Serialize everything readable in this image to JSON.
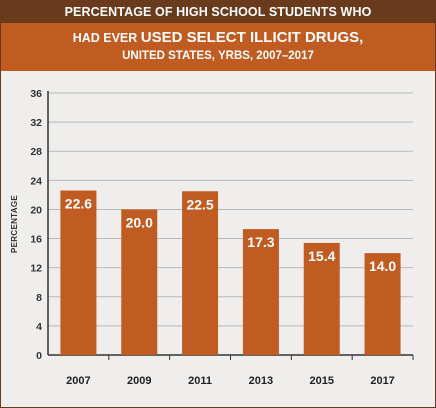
{
  "header": {
    "top_text": "PERCENTAGE OF HIGH SCHOOL STUDENTS WHO",
    "title_prefix": "HAD EVER ",
    "title_emphasis": "USED SELECT ILLICIT DRUGS,",
    "subtitle": "UNITED STATES, YRBS, 2007–2017"
  },
  "colors": {
    "top_band": "#6a3a1c",
    "title_band": "#c05b22",
    "bar": "#c05b22",
    "plot_background": "#efeeed",
    "gridline": "#b9b9b9"
  },
  "chart_data": {
    "type": "bar",
    "categories": [
      "2007",
      "2009",
      "2011",
      "2013",
      "2015",
      "2017"
    ],
    "values": [
      22.6,
      20.0,
      22.5,
      17.3,
      15.4,
      14.0
    ],
    "data_labels": [
      "22.6",
      "20.0",
      "22.5",
      "17.3",
      "15.4",
      "14.0"
    ],
    "ylabel": "PERCENTAGE",
    "xlabel": "",
    "ylim": [
      0,
      36
    ],
    "yticks": [
      0,
      4,
      8,
      12,
      16,
      20,
      24,
      28,
      32,
      36
    ],
    "grid": true,
    "legend": "none"
  }
}
